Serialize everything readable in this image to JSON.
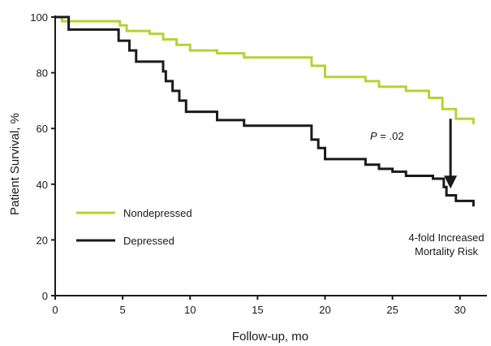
{
  "chart_data": {
    "type": "line",
    "xlabel": "Follow-up, mo",
    "ylabel": "Patient Survival, %",
    "xlim": [
      0,
      32
    ],
    "ylim": [
      0,
      100
    ],
    "xticks": [
      0,
      5,
      10,
      15,
      20,
      25,
      30
    ],
    "yticks": [
      0,
      20,
      40,
      60,
      80,
      100
    ],
    "grid": false,
    "legend_position": "bottom-left",
    "series": [
      {
        "name": "Nondepressed",
        "color": "#b5d335",
        "step": true,
        "points": [
          [
            0,
            100
          ],
          [
            0.5,
            98.5
          ],
          [
            4.8,
            97
          ],
          [
            5.3,
            95
          ],
          [
            7,
            94
          ],
          [
            8,
            92
          ],
          [
            9,
            90
          ],
          [
            10,
            88
          ],
          [
            12,
            87
          ],
          [
            14,
            85.5
          ],
          [
            19,
            82.5
          ],
          [
            20,
            78.5
          ],
          [
            23,
            77
          ],
          [
            24,
            75
          ],
          [
            26,
            73.5
          ],
          [
            27.7,
            71
          ],
          [
            28.7,
            67
          ],
          [
            29.7,
            63.5
          ],
          [
            31,
            61.5
          ]
        ]
      },
      {
        "name": "Depressed",
        "color": "#1a1a1a",
        "step": true,
        "points": [
          [
            0,
            100
          ],
          [
            1,
            95.5
          ],
          [
            4.7,
            91.5
          ],
          [
            5.5,
            88
          ],
          [
            6,
            84
          ],
          [
            8,
            80.5
          ],
          [
            8.2,
            77
          ],
          [
            8.7,
            73.5
          ],
          [
            9.2,
            70
          ],
          [
            9.7,
            66
          ],
          [
            12,
            63
          ],
          [
            14,
            61
          ],
          [
            19,
            56
          ],
          [
            19.5,
            53
          ],
          [
            20,
            49
          ],
          [
            23,
            47
          ],
          [
            24,
            45.5
          ],
          [
            25,
            44.5
          ],
          [
            26,
            43
          ],
          [
            28,
            42
          ],
          [
            28.8,
            39
          ],
          [
            29,
            36
          ],
          [
            29.7,
            34
          ],
          [
            31,
            32
          ]
        ]
      }
    ],
    "annotations": [
      {
        "text_prefix": "P",
        "text": "= .02"
      },
      {
        "lines": [
          "4-fold Increased",
          "Mortality Risk"
        ]
      }
    ],
    "arrow": {
      "x": 29.3,
      "y_from": 63.5,
      "y_to": 39
    }
  }
}
